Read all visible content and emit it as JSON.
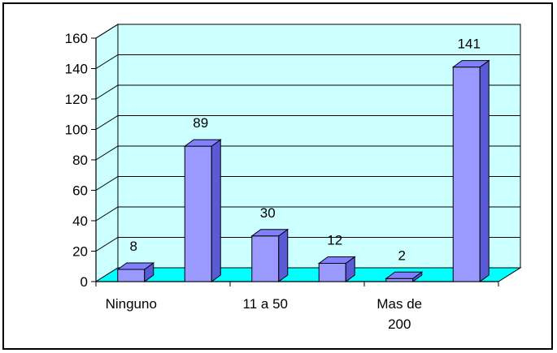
{
  "chart_data": {
    "type": "bar",
    "style": "3d-column",
    "categories": [
      "Ninguno",
      "",
      "11 a 50",
      "",
      "Mas de 200",
      ""
    ],
    "category_label_lines": [
      [
        "Ninguno"
      ],
      [],
      [
        "11 a 50"
      ],
      [],
      [
        "Mas de",
        "200"
      ],
      []
    ],
    "values": [
      8,
      89,
      30,
      12,
      2,
      141
    ],
    "data_labels": [
      "8",
      "89",
      "30",
      "12",
      "2",
      "141"
    ],
    "y_ticks": [
      "0",
      "20",
      "40",
      "60",
      "80",
      "100",
      "120",
      "140",
      "160"
    ],
    "ylim": [
      0,
      160
    ],
    "grid": true,
    "legend": "none",
    "colors": {
      "wall": "#ccffff",
      "floor": "#00ffff",
      "bar_front": "#9999ff",
      "bar_top": "#8080ff",
      "bar_side": "#5a5ad6",
      "outline": "#000000",
      "frame": "#000000"
    }
  }
}
